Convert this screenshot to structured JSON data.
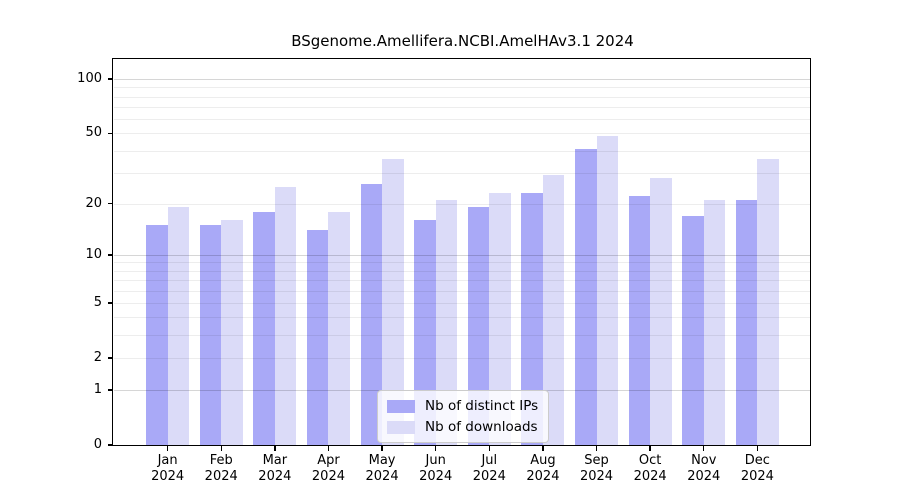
{
  "chart_data": {
    "type": "bar",
    "title": "BSgenome.Amellifera.NCBI.AmelHAv3.1 2024",
    "categories": [
      "Jan",
      "Feb",
      "Mar",
      "Apr",
      "May",
      "Jun",
      "Jul",
      "Aug",
      "Sep",
      "Oct",
      "Nov",
      "Dec"
    ],
    "category_year": "2024",
    "series": [
      {
        "name": "Nb of distinct IPs",
        "color": "#a9a9f7",
        "values": [
          15,
          15,
          18,
          14,
          26,
          16,
          19,
          23,
          41,
          22,
          17,
          21
        ]
      },
      {
        "name": "Nb of downloads",
        "color": "#dbdbf8",
        "values": [
          19,
          16,
          25,
          18,
          36,
          21,
          23,
          29,
          48,
          28,
          21,
          36
        ]
      }
    ],
    "yscale": "log1p",
    "ylim": [
      0,
      127.4
    ],
    "y_ticks": [
      0,
      1,
      2,
      5,
      10,
      20,
      50,
      100
    ],
    "grid_major": [
      1,
      10,
      100
    ],
    "grid_minor": [
      2,
      3,
      4,
      5,
      6,
      7,
      8,
      9,
      20,
      30,
      40,
      50,
      60,
      70,
      80,
      90
    ],
    "grid": true,
    "legend_position": "lower center",
    "xlabel": "",
    "ylabel": ""
  }
}
